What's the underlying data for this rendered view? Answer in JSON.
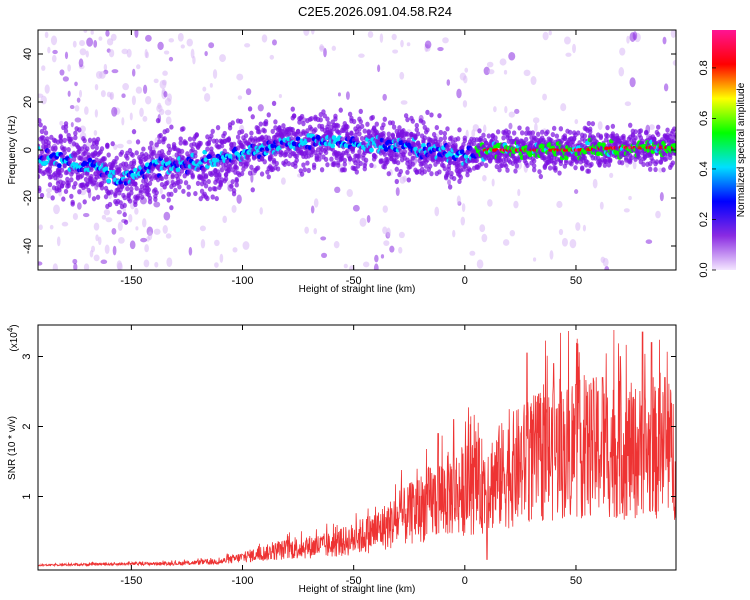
{
  "title": "C2E5.2026.091.04.58.R24",
  "chart_data": [
    {
      "type": "heatmap",
      "xlabel": "Height of straight line (km)",
      "ylabel": "Frequency (Hz)",
      "xlim": [
        -192,
        95
      ],
      "ylim": [
        -50,
        50
      ],
      "x_ticks": [
        -150,
        -100,
        -50,
        0,
        50
      ],
      "y_ticks": [
        -40,
        -20,
        0,
        20,
        40
      ],
      "colorbar": {
        "label": "Normalized spectral amplitude",
        "range": [
          0,
          0.95
        ],
        "ticks": [
          0.0,
          0.2,
          0.4,
          0.6,
          0.8
        ],
        "colormap": [
          "#f4e6ff",
          "#8a2be2",
          "#0000ff",
          "#00e0ff",
          "#00ff00",
          "#ffff00",
          "#ff0000",
          "#ff1493"
        ]
      },
      "ridge": {
        "x": [
          -192,
          -165,
          -155,
          -140,
          -120,
          -100,
          -80,
          -60,
          -50,
          -40,
          -25,
          -10,
          0,
          10,
          30,
          50,
          70,
          95
        ],
        "y": [
          -3,
          -7,
          -13,
          -7,
          -5,
          -2,
          3,
          4,
          2,
          3,
          1,
          -1,
          -3,
          0,
          0,
          0,
          1,
          1
        ]
      }
    },
    {
      "type": "line",
      "xlabel": "Height of straight line (km)",
      "ylabel": "SNR (10 * v/v)",
      "y_multiplier_label": "(x10",
      "y_multiplier_exp": "4",
      "y_multiplier_close": ")",
      "xlim": [
        -192,
        95
      ],
      "ylim": [
        -0.05,
        3.45
      ],
      "x_ticks": [
        -150,
        -100,
        -50,
        0,
        50
      ],
      "y_ticks": [
        1,
        2,
        3
      ],
      "color": "#ee3333",
      "envelope": {
        "x": [
          -192,
          -160,
          -130,
          -110,
          -100,
          -90,
          -80,
          -70,
          -60,
          -50,
          -40,
          -30,
          -20,
          -10,
          0,
          10,
          20,
          30,
          40,
          50,
          60,
          70,
          80,
          95
        ],
        "y": [
          0.02,
          0.04,
          0.05,
          0.08,
          0.15,
          0.22,
          0.28,
          0.32,
          0.35,
          0.45,
          0.58,
          0.75,
          0.95,
          1.15,
          1.25,
          1.35,
          1.55,
          1.75,
          1.85,
          1.9,
          1.95,
          1.9,
          1.85,
          1.85
        ]
      },
      "peaks": [
        [
          10,
          0.1
        ],
        [
          -12,
          1.9
        ],
        [
          -5,
          2.1
        ],
        [
          28,
          3.05
        ],
        [
          40,
          2.9
        ],
        [
          50,
          2.6
        ],
        [
          62,
          2.7
        ],
        [
          70,
          3.0
        ],
        [
          80,
          3.35
        ],
        [
          84,
          3.2
        ],
        [
          90,
          2.7
        ]
      ]
    }
  ]
}
